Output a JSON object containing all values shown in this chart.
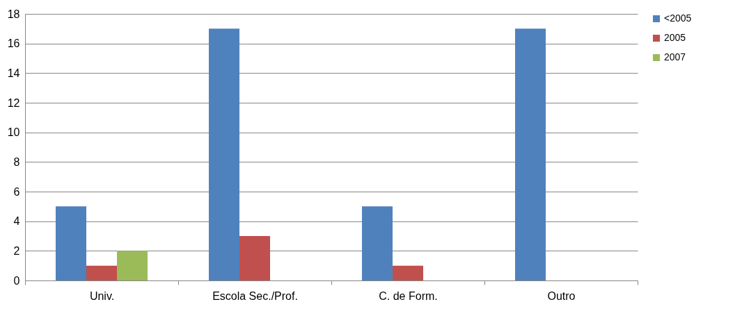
{
  "chart_data": {
    "type": "bar",
    "categories": [
      "Univ.",
      "Escola Sec./Prof.",
      "C. de Form.",
      "Outro"
    ],
    "series": [
      {
        "name": "<2005",
        "color": "#4f81bd",
        "values": [
          5,
          17,
          5,
          17
        ]
      },
      {
        "name": "2005",
        "color": "#c0504d",
        "values": [
          1,
          3,
          1,
          null
        ]
      },
      {
        "name": "2007",
        "color": "#9bbb59",
        "values": [
          2,
          null,
          null,
          null
        ]
      }
    ],
    "ylim": [
      0,
      18
    ],
    "yticks": [
      0,
      2,
      4,
      6,
      8,
      10,
      12,
      14,
      16,
      18
    ],
    "grid": "y",
    "legend": "right"
  }
}
